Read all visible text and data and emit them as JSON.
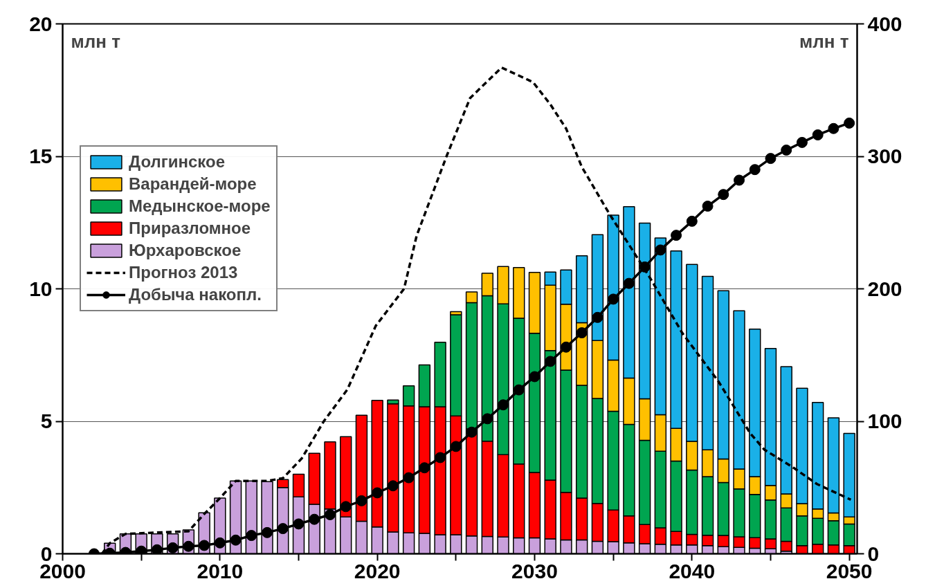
{
  "chart_data": {
    "type": "bar",
    "stacked": true,
    "ylabel": "млн т",
    "y2label": "млн т",
    "x": [
      2003,
      2004,
      2005,
      2006,
      2007,
      2008,
      2009,
      2010,
      2011,
      2012,
      2013,
      2014,
      2015,
      2016,
      2017,
      2018,
      2019,
      2020,
      2021,
      2022,
      2023,
      2024,
      2025,
      2026,
      2027,
      2028,
      2029,
      2030,
      2031,
      2032,
      2033,
      2034,
      2035,
      2036,
      2037,
      2038,
      2039,
      2040,
      2041,
      2042,
      2043,
      2044,
      2045,
      2046,
      2047,
      2048,
      2049,
      2050
    ],
    "xlim": [
      2000,
      2050.5
    ],
    "xticks": [
      2000,
      {
        "value": 2005,
        "label": null
      },
      2010,
      {
        "value": 2015,
        "label": null
      },
      2020,
      {
        "value": 2025,
        "label": null
      },
      2030,
      {
        "value": 2035,
        "label": null
      },
      2040,
      {
        "value": 2045,
        "label": null
      },
      2050
    ],
    "ylim": [
      0,
      20
    ],
    "yticks": [
      0,
      5,
      10,
      15,
      20
    ],
    "y2lim": [
      0,
      400
    ],
    "y2ticks": [
      0,
      100,
      200,
      300,
      400
    ],
    "grid": "y",
    "legend": "top left",
    "series": [
      {
        "name": "Юрхаровское",
        "color": "#c9a0dc",
        "values": [
          0.4,
          0.75,
          0.75,
          0.75,
          0.75,
          0.9,
          1.55,
          2.1,
          2.75,
          2.75,
          2.72,
          2.5,
          2.15,
          1.87,
          1.69,
          1.39,
          1.23,
          1.01,
          0.82,
          0.79,
          0.77,
          0.72,
          0.72,
          0.67,
          0.65,
          0.63,
          0.6,
          0.6,
          0.56,
          0.52,
          0.52,
          0.47,
          0.46,
          0.41,
          0.38,
          0.36,
          0.33,
          0.33,
          0.31,
          0.27,
          0.24,
          0.21,
          0.19,
          0.1,
          null,
          null,
          null,
          null
        ]
      },
      {
        "name": "Приразломное",
        "color": "#ff0000",
        "values": [
          null,
          null,
          null,
          null,
          null,
          null,
          null,
          null,
          null,
          null,
          null,
          0.3,
          0.85,
          1.92,
          2.53,
          3.03,
          4.0,
          4.78,
          4.84,
          4.79,
          4.78,
          4.83,
          4.48,
          4.04,
          3.6,
          3.11,
          2.79,
          2.47,
          2.22,
          1.8,
          1.58,
          1.43,
          1.19,
          1.02,
          0.72,
          0.62,
          0.51,
          0.4,
          0.39,
          0.42,
          0.4,
          0.4,
          0.37,
          0.37,
          0.31,
          0.36,
          0.33,
          0.31
        ]
      },
      {
        "name": "Медынское-море",
        "color": "#00a550",
        "values": [
          null,
          null,
          null,
          null,
          null,
          null,
          null,
          null,
          null,
          null,
          null,
          null,
          null,
          null,
          null,
          null,
          null,
          null,
          0.14,
          0.76,
          1.58,
          2.43,
          3.82,
          4.77,
          5.49,
          5.69,
          5.5,
          5.25,
          4.89,
          4.61,
          4.26,
          3.96,
          3.73,
          3.45,
          3.18,
          2.89,
          2.66,
          2.43,
          2.21,
          2.0,
          1.81,
          1.63,
          1.47,
          1.26,
          1.12,
          0.98,
          0.92,
          0.81
        ]
      },
      {
        "name": "Варандей-море",
        "color": "#ffc000",
        "values": [
          null,
          null,
          null,
          null,
          null,
          null,
          null,
          null,
          null,
          null,
          null,
          null,
          null,
          null,
          null,
          null,
          null,
          null,
          null,
          null,
          null,
          null,
          0.12,
          0.4,
          0.85,
          1.41,
          1.91,
          2.3,
          2.47,
          2.49,
          2.36,
          2.19,
          1.93,
          1.75,
          1.57,
          1.38,
          1.23,
          1.08,
          1.01,
          0.89,
          0.75,
          0.67,
          0.55,
          0.53,
          0.46,
          0.35,
          0.29,
          0.27
        ]
      },
      {
        "name": "Долгинское",
        "color": "#1ab0e8",
        "values": [
          null,
          null,
          null,
          null,
          null,
          null,
          null,
          null,
          null,
          null,
          null,
          null,
          null,
          null,
          null,
          null,
          null,
          null,
          null,
          null,
          null,
          null,
          null,
          null,
          null,
          null,
          null,
          null,
          0.49,
          1.29,
          2.53,
          3.99,
          5.47,
          6.47,
          6.63,
          6.67,
          6.7,
          6.68,
          6.55,
          6.35,
          5.97,
          5.57,
          5.17,
          4.8,
          4.36,
          4.02,
          3.59,
          3.15
        ]
      },
      {
        "name": "Прогноз 2013",
        "type": "line",
        "color": "#000000",
        "line_style": "dashed",
        "marker": "none",
        "x": [
          2002.5,
          2003,
          2004,
          2008,
          2009,
          2010,
          2011,
          2013,
          2014,
          2015.2,
          2016.6,
          2018.1,
          2019.9,
          2021.7,
          2022.5,
          2024.4,
          2025.9,
          2027.9,
          2029.9,
          2031,
          2032,
          2033,
          2034.7,
          2037.3,
          2039.4,
          2041.7,
          2043.7,
          2044.6,
          2046.4,
          2047.95,
          2050.1
        ],
        "values": [
          0,
          0.4,
          0.75,
          0.85,
          1.5,
          2.1,
          2.75,
          2.75,
          2.85,
          3.6,
          5,
          6.2,
          8.6,
          10,
          12,
          15,
          17.2,
          18.35,
          17.8,
          16.96,
          16.05,
          14.6,
          12.88,
          10.45,
          8.32,
          6.49,
          4.55,
          3.93,
          3.27,
          2.63,
          2.04
        ]
      },
      {
        "name": "Добыча накопл.",
        "type": "line",
        "axis": "y2",
        "color": "#000000",
        "line_style": "solid",
        "marker": "circle",
        "x": [
          2002,
          2003,
          2004,
          2005,
          2006,
          2007,
          2008,
          2009,
          2010,
          2011,
          2012,
          2013,
          2014,
          2015,
          2016,
          2017,
          2018,
          2019,
          2020,
          2021,
          2022,
          2023,
          2024,
          2025,
          2026,
          2027,
          2028,
          2029,
          2030,
          2031,
          2032,
          2033,
          2034,
          2035,
          2036,
          2037,
          2038,
          2039,
          2040,
          2041,
          2042,
          2043,
          2044,
          2045,
          2046,
          2047,
          2048,
          2049,
          2050
        ],
        "values": [
          0,
          0.4,
          1,
          2,
          3,
          4.5,
          5.6,
          6.3,
          8.2,
          10.3,
          13.8,
          16,
          19,
          22.5,
          26,
          29.5,
          35.6,
          40,
          46,
          51.3,
          57.4,
          64.9,
          72.6,
          81,
          91.8,
          101.9,
          112.4,
          123.7,
          133.7,
          145.2,
          156,
          166.8,
          178.4,
          192.2,
          204.1,
          216.5,
          229.3,
          240.4,
          251,
          262.4,
          271.2,
          282,
          290,
          298.4,
          304.7,
          310.5,
          316.2,
          321,
          325.1
        ]
      }
    ]
  }
}
